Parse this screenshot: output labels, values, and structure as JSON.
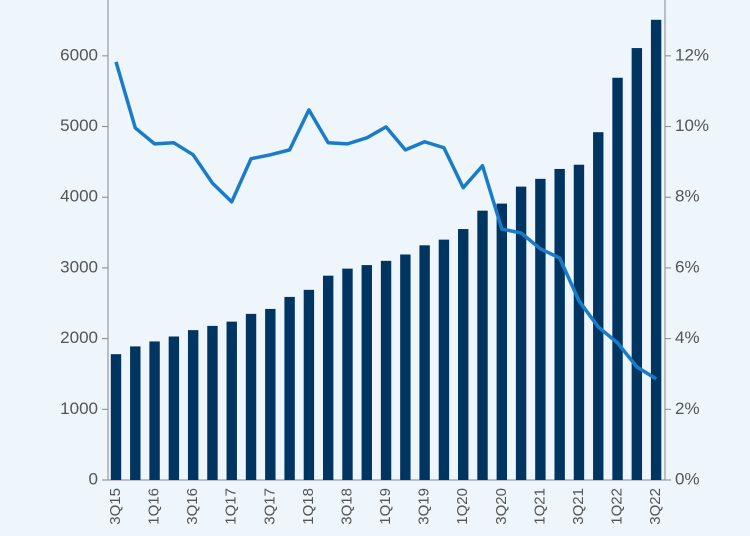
{
  "chart_data": {
    "type": "bar_line",
    "categories": [
      "3Q15",
      null,
      "1Q16",
      null,
      "3Q16",
      null,
      "1Q17",
      null,
      "3Q17",
      null,
      "1Q18",
      null,
      "3Q18",
      null,
      "1Q19",
      null,
      "3Q19",
      null,
      "1Q20",
      null,
      "3Q20",
      null,
      "1Q21",
      null,
      "3Q21",
      null,
      "1Q22",
      null,
      "3Q22"
    ],
    "series": [
      {
        "type": "bar",
        "color": "#003562",
        "values": [
          1780,
          1890,
          1960,
          2030,
          2120,
          2180,
          2240,
          2350,
          2420,
          2590,
          2690,
          2890,
          2990,
          3040,
          3100,
          3190,
          3320,
          3400,
          3550,
          3810,
          3910,
          4150,
          4260,
          4400,
          4460,
          4920,
          5690,
          6110,
          6510
        ]
      },
      {
        "type": "line",
        "axis": "y2",
        "color": "#1a7cc9",
        "values": [
          11.83,
          9.96,
          9.51,
          9.54,
          9.2,
          8.4,
          7.87,
          9.09,
          9.2,
          9.34,
          10.47,
          9.54,
          9.51,
          9.68,
          9.99,
          9.34,
          9.57,
          9.4,
          8.27,
          8.89,
          7.1,
          6.99,
          6.54,
          6.28,
          5.07,
          4.33,
          3.88,
          3.2,
          2.86
        ]
      }
    ],
    "ylim": [
      0,
      6790
    ],
    "yticks": [
      0,
      1000,
      2000,
      3000,
      4000,
      5000,
      6000
    ],
    "y2lim": [
      0,
      13.58
    ],
    "y2ticks": [
      {
        "value": 0,
        "label": "0%"
      },
      {
        "value": 2,
        "label": "2%"
      },
      {
        "value": 4,
        "label": "4%"
      },
      {
        "value": 6,
        "label": "6%"
      },
      {
        "value": 8,
        "label": "8%"
      },
      {
        "value": 10,
        "label": "10%"
      },
      {
        "value": 12,
        "label": "12%"
      }
    ]
  }
}
